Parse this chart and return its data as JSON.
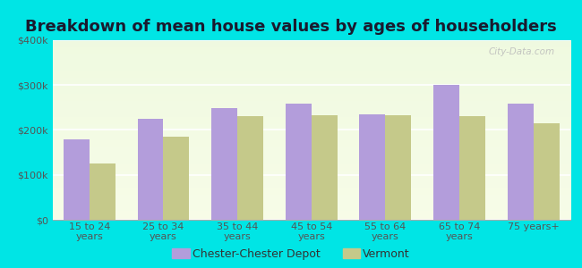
{
  "title": "Breakdown of mean house values by ages of householders",
  "categories": [
    "15 to 24\nyears",
    "25 to 34\nyears",
    "35 to 44\nyears",
    "45 to 54\nyears",
    "55 to 64\nyears",
    "65 to 74\nyears",
    "75 years+"
  ],
  "chester_values": [
    180000,
    225000,
    248000,
    258000,
    235000,
    300000,
    258000
  ],
  "vermont_values": [
    125000,
    185000,
    230000,
    232000,
    232000,
    230000,
    215000
  ],
  "chester_color": "#b39ddb",
  "vermont_color": "#c5c98a",
  "background_color": "#00e5e5",
  "ylim": [
    0,
    400000
  ],
  "yticks": [
    0,
    100000,
    200000,
    300000,
    400000
  ],
  "ytick_labels": [
    "$0",
    "$100k",
    "$200k",
    "$300k",
    "$400k"
  ],
  "legend_label_1": "Chester-Chester Depot",
  "legend_label_2": "Vermont",
  "bar_width": 0.35,
  "watermark": "City-Data.com",
  "title_fontsize": 13,
  "tick_fontsize": 8,
  "legend_fontsize": 9
}
